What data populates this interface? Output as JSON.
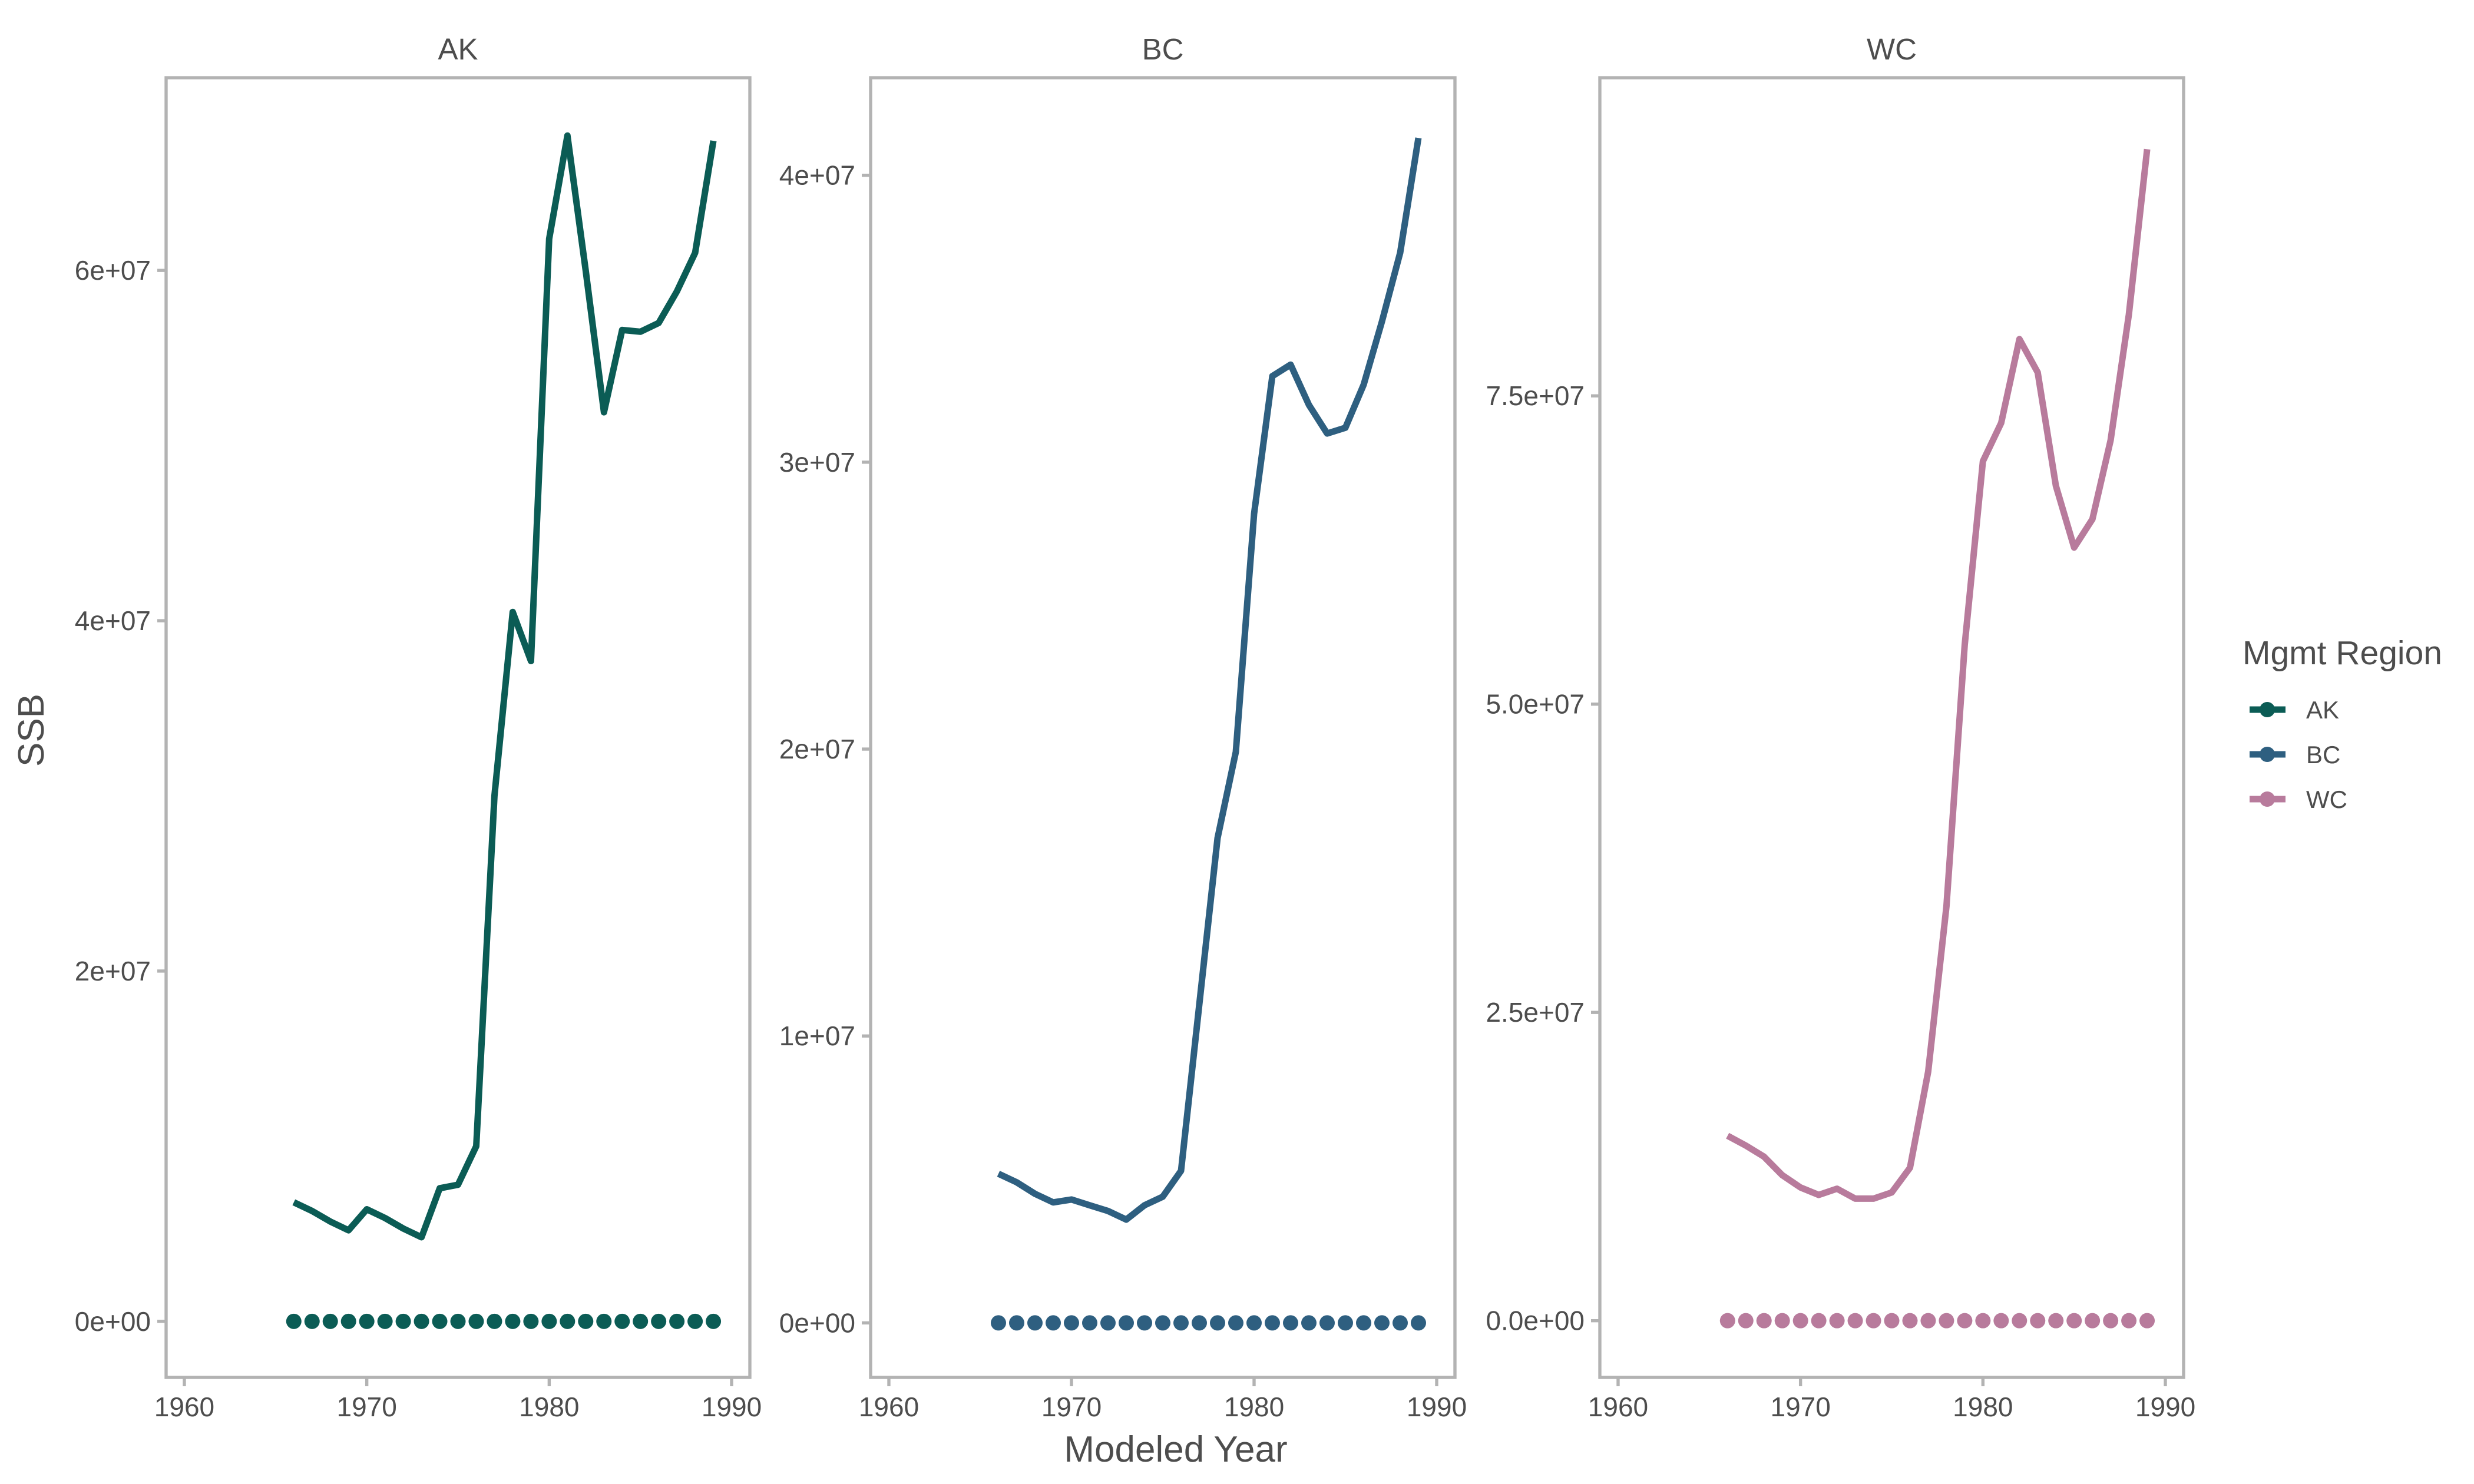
{
  "chart_data": {
    "type": "line",
    "xlabel": "Modeled Year",
    "ylabel": "SSB",
    "legend": {
      "title": "Mgmt Region",
      "position": "right",
      "entries": [
        {
          "name": "AK",
          "color": "#0b5c55"
        },
        {
          "name": "BC",
          "color": "#2e5f80"
        },
        {
          "name": "WC",
          "color": "#b87b9c"
        }
      ]
    },
    "x_ticks": [
      "1960",
      "1970",
      "1980",
      "1990"
    ],
    "xlim": [
      1959,
      1991
    ],
    "grid": false,
    "panels": [
      {
        "title": "AK",
        "color": "#0b5c55",
        "ylim": [
          -3200000,
          71000000
        ],
        "y_ticks": [
          0,
          20000000,
          40000000,
          60000000
        ],
        "y_tick_labels": [
          "0e+00",
          "2e+07",
          "4e+07",
          "6e+07"
        ],
        "series": [
          {
            "name": "SSB",
            "x": [
              1966,
              1967,
              1968,
              1969,
              1970,
              1971,
              1972,
              1973,
              1974,
              1975,
              1976,
              1977,
              1978,
              1979,
              1980,
              1981,
              1982,
              1983,
              1984,
              1985,
              1986,
              1987,
              1988,
              1989
            ],
            "values": [
              6800000,
              6300000,
              5700000,
              5200000,
              6400000,
              5900000,
              5300000,
              4800000,
              7600000,
              7800000,
              10000000,
              30000000,
              40500000,
              37700000,
              61800000,
              67700000,
              60000000,
              51900000,
              56600000,
              56500000,
              57000000,
              58800000,
              61000000,
              67400000
            ]
          },
          {
            "name": "Points",
            "x": [
              1966,
              1967,
              1968,
              1969,
              1970,
              1971,
              1972,
              1973,
              1974,
              1975,
              1976,
              1977,
              1978,
              1979,
              1980,
              1981,
              1982,
              1983,
              1984,
              1985,
              1986,
              1987,
              1988,
              1989
            ],
            "values": [
              0,
              0,
              0,
              0,
              0,
              0,
              0,
              0,
              0,
              0,
              0,
              0,
              0,
              0,
              0,
              0,
              0,
              0,
              0,
              0,
              0,
              0,
              0,
              0
            ]
          }
        ]
      },
      {
        "title": "BC",
        "color": "#2e5f80",
        "ylim": [
          -1900000,
          43400000
        ],
        "y_ticks": [
          0,
          10000000,
          20000000,
          30000000,
          40000000
        ],
        "y_tick_labels": [
          "0e+00",
          "1e+07",
          "2e+07",
          "3e+07",
          "4e+07"
        ],
        "series": [
          {
            "name": "SSB",
            "x": [
              1966,
              1967,
              1968,
              1969,
              1970,
              1971,
              1972,
              1973,
              1974,
              1975,
              1976,
              1977,
              1978,
              1979,
              1980,
              1981,
              1982,
              1983,
              1984,
              1985,
              1986,
              1987,
              1988,
              1989
            ],
            "values": [
              5200000,
              4900000,
              4500000,
              4200000,
              4300000,
              4100000,
              3900000,
              3600000,
              4100000,
              4400000,
              5300000,
              11100000,
              16900000,
              19900000,
              28200000,
              33000000,
              33400000,
              32000000,
              31000000,
              31200000,
              32700000,
              34900000,
              37300000,
              41300000
            ]
          },
          {
            "name": "Points",
            "x": [
              1966,
              1967,
              1968,
              1969,
              1970,
              1971,
              1972,
              1973,
              1974,
              1975,
              1976,
              1977,
              1978,
              1979,
              1980,
              1981,
              1982,
              1983,
              1984,
              1985,
              1986,
              1987,
              1988,
              1989
            ],
            "values": [
              0,
              0,
              0,
              0,
              0,
              0,
              0,
              0,
              0,
              0,
              0,
              0,
              0,
              0,
              0,
              0,
              0,
              0,
              0,
              0,
              0,
              0,
              0,
              0
            ]
          }
        ]
      },
      {
        "title": "WC",
        "color": "#b87b9c",
        "ylim": [
          -4600000,
          100800000
        ],
        "y_ticks": [
          0,
          25000000,
          50000000,
          75000000
        ],
        "y_tick_labels": [
          "0.0e+00",
          "2.5e+07",
          "5.0e+07",
          "7.5e+07"
        ],
        "series": [
          {
            "name": "SSB",
            "x": [
              1966,
              1967,
              1968,
              1969,
              1970,
              1971,
              1972,
              1973,
              1974,
              1975,
              1976,
              1977,
              1978,
              1979,
              1980,
              1981,
              1982,
              1983,
              1984,
              1985,
              1986,
              1987,
              1988,
              1989
            ],
            "values": [
              15000000,
              14200000,
              13300000,
              11800000,
              10800000,
              10200000,
              10700000,
              9900000,
              9900000,
              10400000,
              12400000,
              20200000,
              33600000,
              54800000,
              69700000,
              72800000,
              79600000,
              76900000,
              67700000,
              62700000,
              65000000,
              71400000,
              81600000,
              95000000
            ]
          },
          {
            "name": "Points",
            "x": [
              1966,
              1967,
              1968,
              1969,
              1970,
              1971,
              1972,
              1973,
              1974,
              1975,
              1976,
              1977,
              1978,
              1979,
              1980,
              1981,
              1982,
              1983,
              1984,
              1985,
              1986,
              1987,
              1988,
              1989
            ],
            "values": [
              0,
              0,
              0,
              0,
              0,
              0,
              0,
              0,
              0,
              0,
              0,
              0,
              0,
              0,
              0,
              0,
              0,
              0,
              0,
              0,
              0,
              0,
              0,
              0
            ]
          }
        ]
      }
    ]
  }
}
